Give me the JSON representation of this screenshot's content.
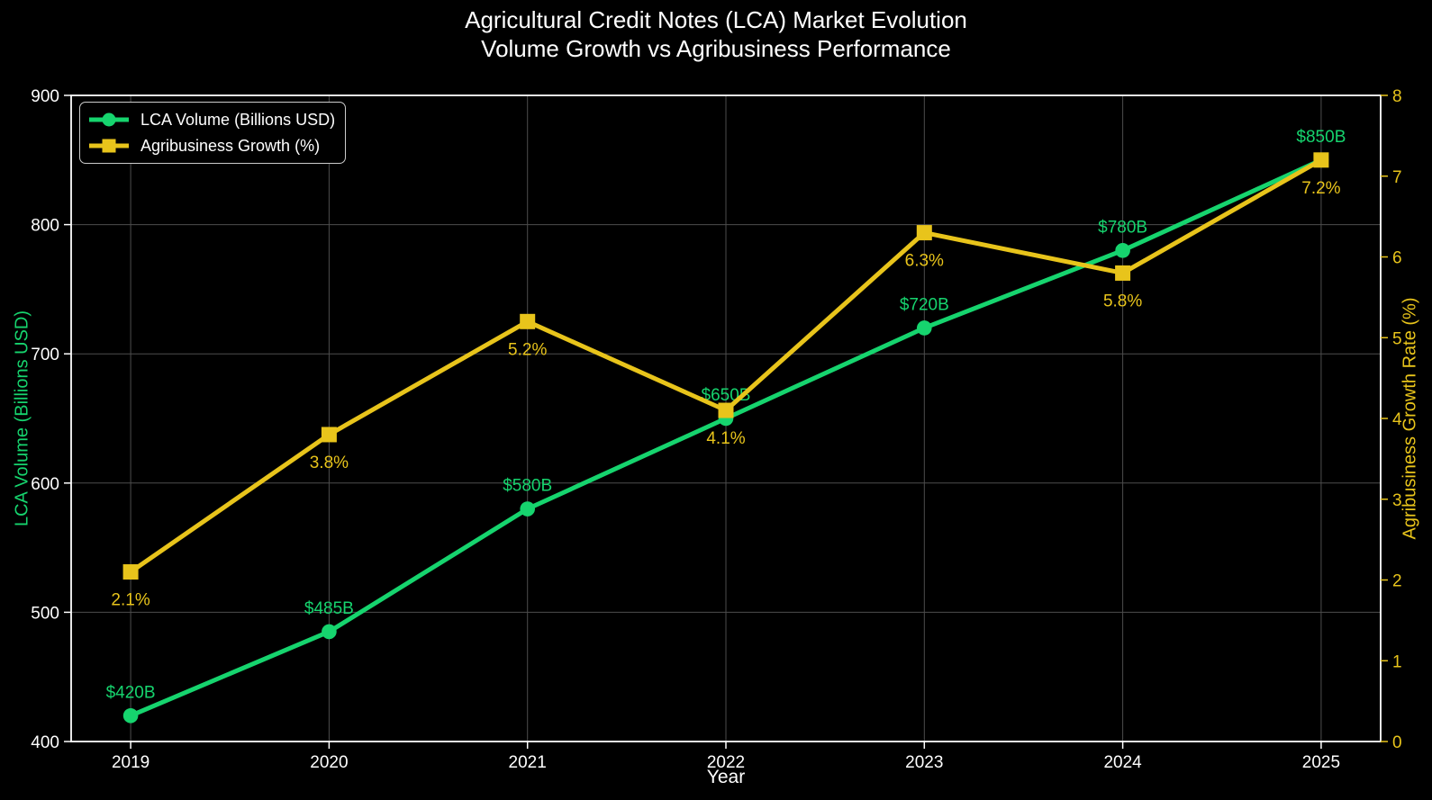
{
  "title": {
    "line1": "Agricultural Credit Notes (LCA) Market Evolution",
    "line2": "Volume Growth vs Agribusiness Performance"
  },
  "colors": {
    "background": "#000000",
    "foreground": "#ffffff",
    "green": "#16d46e",
    "gold": "#e8c41b",
    "grid": "#4d4d4d",
    "legend_border": "#cccccc"
  },
  "chart_data": {
    "type": "line",
    "x": [
      2019,
      2020,
      2021,
      2022,
      2023,
      2024,
      2025
    ],
    "xlabel": "Year",
    "x_margin": 0.3,
    "grid": true,
    "legend_position": "upper left",
    "left_axis": {
      "label": "LCA Volume (Billions USD)",
      "min": 400,
      "max": 900,
      "ticks": [
        400,
        500,
        600,
        700,
        800,
        900
      ],
      "label_color_key": "green",
      "tick_color_key": "foreground"
    },
    "right_axis": {
      "label": "Agribusiness Growth Rate (%)",
      "min": 0,
      "max": 8,
      "ticks": [
        0,
        1,
        2,
        3,
        4,
        5,
        6,
        7,
        8
      ],
      "label_color_key": "gold",
      "tick_color_key": "gold"
    },
    "series": [
      {
        "name": "LCA Volume (Billions USD)",
        "id": "lca-volume",
        "axis": "left",
        "color_key": "green",
        "marker": "circle",
        "values": [
          420,
          485,
          580,
          650,
          720,
          780,
          850
        ],
        "point_labels": [
          "$420B",
          "$485B",
          "$580B",
          "$650B",
          "$720B",
          "$780B",
          "$850B"
        ],
        "label_side": "above"
      },
      {
        "name": "Agribusiness Growth (%)",
        "id": "agribusiness-growth",
        "axis": "right",
        "color_key": "gold",
        "marker": "square",
        "values": [
          2.1,
          3.8,
          5.2,
          4.1,
          6.3,
          5.8,
          7.2
        ],
        "point_labels": [
          "2.1%",
          "3.8%",
          "5.2%",
          "4.1%",
          "6.3%",
          "5.8%",
          "7.2%"
        ],
        "label_side": "below"
      }
    ]
  }
}
